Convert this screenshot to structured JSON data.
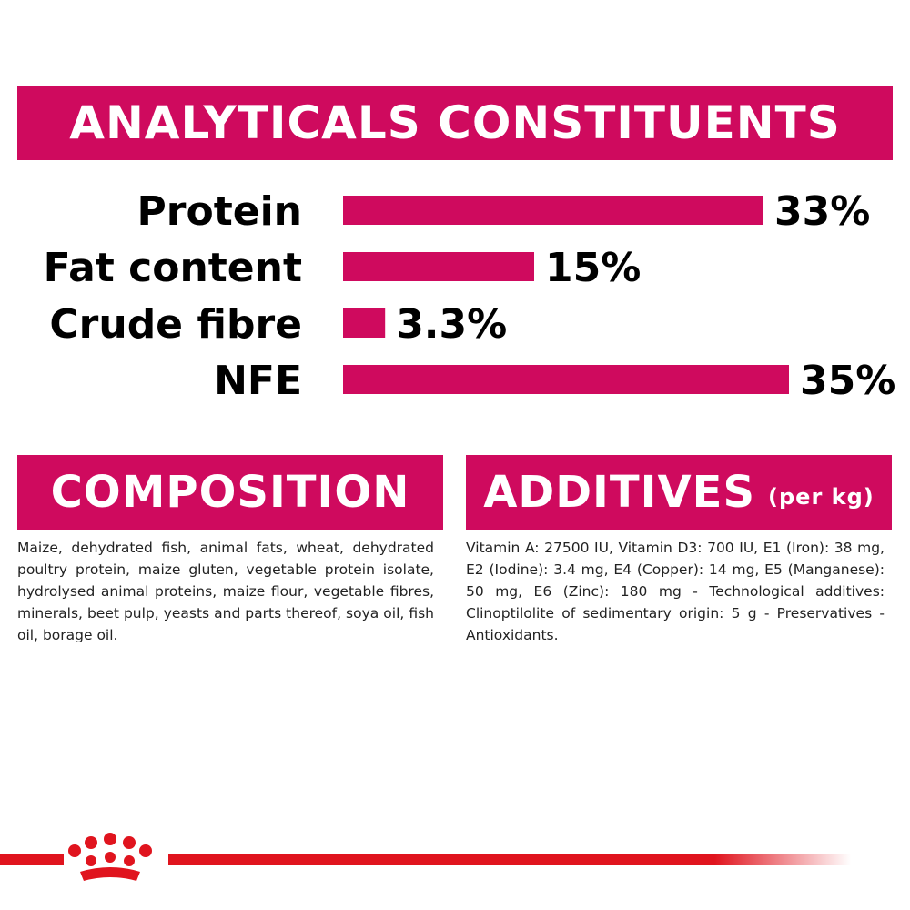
{
  "chart_data": {
    "type": "bar",
    "title": "ANALYTICALS CONSTITUENTS",
    "categories": [
      "Protein",
      "Fat content",
      "Crude fibre",
      "NFE"
    ],
    "values": [
      33,
      15,
      3.3,
      35
    ],
    "value_labels": [
      "33%",
      "15%",
      "3.3%",
      "35%"
    ],
    "color": "#cf0a5e"
  },
  "composition": {
    "title": "COMPOSITION",
    "text": "Maize, dehydrated fish, animal fats, wheat, dehydrated poultry protein, maize gluten, vegetable protein isolate, hydrolysed animal proteins, maize flour, vegetable fibres, minerals, beet pulp, yeasts and parts thereof, soya oil, fish oil, borage oil."
  },
  "additives": {
    "title": "ADDITIVES",
    "title_note": "(per kg)",
    "text": "Vitamin A: 27500 IU, Vitamin D3: 700 IU, E1 (Iron): 38 mg, E2 (Iodine): 3.4 mg, E4 (Copper): 14 mg, E5 (Manganese): 50 mg, E6 (Zinc): 180 mg - Technological additives: Clinoptilolite of sedimentary origin: 5 g - Preservatives - Antioxidants."
  }
}
